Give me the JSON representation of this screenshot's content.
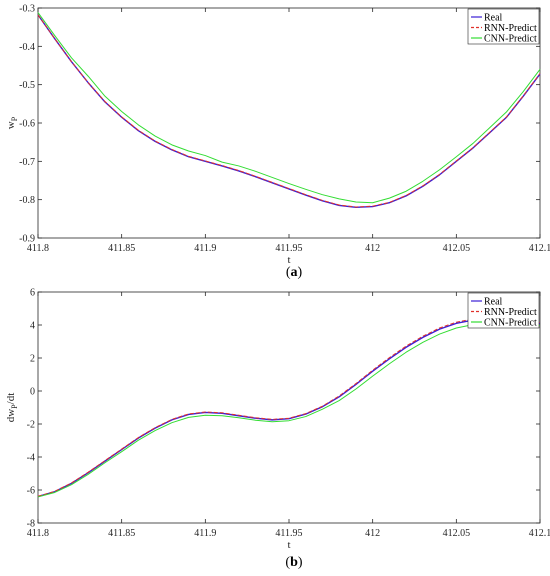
{
  "chart_data": [
    {
      "type": "line",
      "panel_label": [
        "(",
        "a",
        ")"
      ],
      "xlabel": "t",
      "ylabel": "w",
      "ylabel_sub": "P",
      "xlim": [
        411.8,
        412.1
      ],
      "ylim": [
        -0.9,
        -0.3
      ],
      "xticks": [
        "411.8",
        "411.85",
        "411.9",
        "411.95",
        "412",
        "412.05",
        "412.1"
      ],
      "yticks": [
        "-0.9",
        "-0.8",
        "-0.7",
        "-0.6",
        "-0.5",
        "-0.4",
        "-0.3"
      ],
      "xtick_values": [
        411.8,
        411.85,
        411.9,
        411.95,
        412.0,
        412.05,
        412.1
      ],
      "ytick_values": [
        -0.9,
        -0.8,
        -0.7,
        -0.6,
        -0.5,
        -0.4,
        -0.3
      ],
      "grid": false,
      "legend_position": "top-right",
      "series": [
        {
          "name": "Real",
          "color": "#3b1fd6",
          "style": "solid",
          "x": [
            411.8,
            411.81,
            411.82,
            411.83,
            411.84,
            411.85,
            411.86,
            411.87,
            411.88,
            411.89,
            411.9,
            411.91,
            411.92,
            411.93,
            411.94,
            411.95,
            411.96,
            411.97,
            411.98,
            411.99,
            412.0,
            412.01,
            412.02,
            412.03,
            412.04,
            412.05,
            412.06,
            412.07,
            412.08,
            412.09,
            412.1
          ],
          "y": [
            -0.318,
            -0.38,
            -0.44,
            -0.495,
            -0.545,
            -0.585,
            -0.62,
            -0.648,
            -0.67,
            -0.688,
            -0.7,
            -0.712,
            -0.725,
            -0.74,
            -0.756,
            -0.772,
            -0.788,
            -0.803,
            -0.815,
            -0.82,
            -0.818,
            -0.808,
            -0.79,
            -0.765,
            -0.735,
            -0.7,
            -0.665,
            -0.625,
            -0.585,
            -0.53,
            -0.472
          ]
        },
        {
          "name": "RNN-Predict",
          "color": "#e0302a",
          "style": "dashed",
          "x": [
            411.8,
            411.81,
            411.82,
            411.83,
            411.84,
            411.85,
            411.86,
            411.87,
            411.88,
            411.89,
            411.9,
            411.91,
            411.92,
            411.93,
            411.94,
            411.95,
            411.96,
            411.97,
            411.98,
            411.99,
            412.0,
            412.01,
            412.02,
            412.03,
            412.04,
            412.05,
            412.06,
            412.07,
            412.08,
            412.09,
            412.1
          ],
          "y": [
            -0.318,
            -0.38,
            -0.44,
            -0.495,
            -0.544,
            -0.584,
            -0.619,
            -0.647,
            -0.669,
            -0.687,
            -0.699,
            -0.711,
            -0.724,
            -0.739,
            -0.755,
            -0.771,
            -0.787,
            -0.802,
            -0.814,
            -0.819,
            -0.817,
            -0.807,
            -0.789,
            -0.764,
            -0.734,
            -0.699,
            -0.664,
            -0.624,
            -0.584,
            -0.529,
            -0.471
          ]
        },
        {
          "name": "CNN-Predict",
          "color": "#33dd33",
          "style": "solid",
          "x": [
            411.8,
            411.81,
            411.82,
            411.83,
            411.84,
            411.85,
            411.86,
            411.87,
            411.88,
            411.89,
            411.9,
            411.91,
            411.92,
            411.93,
            411.94,
            411.95,
            411.96,
            411.97,
            411.98,
            411.99,
            412.0,
            412.01,
            412.02,
            412.03,
            412.04,
            412.05,
            412.06,
            412.07,
            412.08,
            412.09,
            412.1
          ],
          "y": [
            -0.312,
            -0.372,
            -0.43,
            -0.478,
            -0.53,
            -0.57,
            -0.605,
            -0.634,
            -0.657,
            -0.673,
            -0.685,
            -0.702,
            -0.712,
            -0.726,
            -0.742,
            -0.758,
            -0.773,
            -0.787,
            -0.798,
            -0.806,
            -0.808,
            -0.796,
            -0.778,
            -0.752,
            -0.722,
            -0.688,
            -0.653,
            -0.612,
            -0.571,
            -0.518,
            -0.46
          ]
        }
      ]
    },
    {
      "type": "line",
      "panel_label": [
        "(",
        "b",
        ")"
      ],
      "xlabel": "t",
      "ylabel_prefix": "dw",
      "ylabel_sub": "P",
      "ylabel_suffix": "/dt",
      "xlim": [
        411.8,
        412.1
      ],
      "ylim": [
        -8,
        6
      ],
      "xticks": [
        "411.8",
        "411.85",
        "411.9",
        "411.95",
        "412",
        "412.05",
        "412.1"
      ],
      "yticks": [
        "-8",
        "-6",
        "-4",
        "-2",
        "0",
        "2",
        "4",
        "6"
      ],
      "xtick_values": [
        411.8,
        411.85,
        411.9,
        411.95,
        412.0,
        412.05,
        412.1
      ],
      "ytick_values": [
        -8,
        -6,
        -4,
        -2,
        0,
        2,
        4,
        6
      ],
      "grid": false,
      "legend_position": "top-right",
      "series": [
        {
          "name": "Real",
          "color": "#3b1fd6",
          "style": "solid",
          "x": [
            411.8,
            411.81,
            411.82,
            411.83,
            411.84,
            411.85,
            411.86,
            411.87,
            411.88,
            411.89,
            411.9,
            411.91,
            411.92,
            411.93,
            411.94,
            411.95,
            411.96,
            411.97,
            411.98,
            411.99,
            412.0,
            412.01,
            412.02,
            412.03,
            412.04,
            412.05,
            412.06,
            412.07,
            412.08,
            412.09,
            412.1
          ],
          "y": [
            -6.4,
            -6.1,
            -5.6,
            -4.95,
            -4.25,
            -3.55,
            -2.85,
            -2.25,
            -1.75,
            -1.42,
            -1.3,
            -1.35,
            -1.5,
            -1.65,
            -1.75,
            -1.68,
            -1.4,
            -0.95,
            -0.35,
            0.4,
            1.2,
            1.95,
            2.65,
            3.25,
            3.75,
            4.1,
            4.3,
            4.38,
            4.33,
            4.22,
            4.1
          ]
        },
        {
          "name": "RNN-Predict",
          "color": "#e0302a",
          "style": "dashed",
          "x": [
            411.8,
            411.81,
            411.82,
            411.83,
            411.84,
            411.85,
            411.86,
            411.87,
            411.88,
            411.89,
            411.9,
            411.91,
            411.92,
            411.93,
            411.94,
            411.95,
            411.96,
            411.97,
            411.98,
            411.99,
            412.0,
            412.01,
            412.02,
            412.03,
            412.04,
            412.05,
            412.06,
            412.07,
            412.08,
            412.09,
            412.1
          ],
          "y": [
            -6.38,
            -6.08,
            -5.57,
            -4.92,
            -4.22,
            -3.52,
            -2.82,
            -2.22,
            -1.72,
            -1.39,
            -1.27,
            -1.32,
            -1.47,
            -1.62,
            -1.72,
            -1.65,
            -1.37,
            -0.92,
            -0.3,
            0.45,
            1.26,
            2.02,
            2.72,
            3.32,
            3.82,
            4.17,
            4.37,
            4.45,
            4.4,
            4.28,
            4.15
          ]
        },
        {
          "name": "CNN-Predict",
          "color": "#33dd33",
          "style": "solid",
          "x": [
            411.8,
            411.81,
            411.82,
            411.83,
            411.84,
            411.85,
            411.86,
            411.87,
            411.88,
            411.89,
            411.9,
            411.91,
            411.92,
            411.93,
            411.94,
            411.95,
            411.96,
            411.97,
            411.98,
            411.99,
            412.0,
            412.01,
            412.02,
            412.03,
            412.04,
            412.05,
            412.06,
            412.07,
            412.08,
            412.09,
            412.1
          ],
          "y": [
            -6.42,
            -6.15,
            -5.68,
            -5.05,
            -4.35,
            -3.68,
            -2.98,
            -2.4,
            -1.92,
            -1.6,
            -1.47,
            -1.5,
            -1.62,
            -1.77,
            -1.86,
            -1.8,
            -1.55,
            -1.1,
            -0.58,
            0.12,
            0.9,
            1.65,
            2.35,
            2.95,
            3.45,
            3.82,
            4.02,
            4.12,
            4.1,
            4.05,
            3.98
          ]
        }
      ]
    }
  ]
}
